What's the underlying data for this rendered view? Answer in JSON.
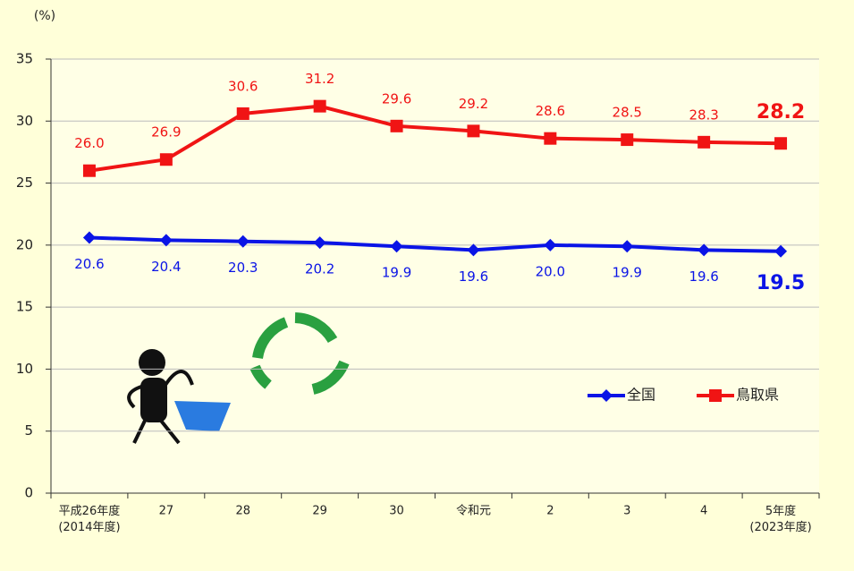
{
  "chart_data": {
    "type": "line",
    "y_unit": "(%)",
    "categories": [
      "平成26年度\n(2014年度)",
      "27",
      "28",
      "29",
      "30",
      "令和元",
      "2",
      "3",
      "4",
      "5年度\n(2023年度)"
    ],
    "series": [
      {
        "name": "全国",
        "color": "#0a14e6",
        "marker": "diamond",
        "values": [
          20.6,
          20.4,
          20.3,
          20.2,
          19.9,
          19.6,
          20.0,
          19.9,
          19.6,
          19.5
        ],
        "value_labels": [
          "20.6",
          "20.4",
          "20.3",
          "20.2",
          "19.9",
          "19.6",
          "20.0",
          "19.9",
          "19.6",
          "19.5"
        ]
      },
      {
        "name": "鳥取県",
        "color": "#f01414",
        "marker": "square",
        "values": [
          26.0,
          26.9,
          30.6,
          31.2,
          29.6,
          29.2,
          28.6,
          28.5,
          28.3,
          28.2
        ],
        "value_labels": [
          "26.0",
          "26.9",
          "30.6",
          "31.2",
          "29.6",
          "29.2",
          "28.6",
          "28.5",
          "28.3",
          "28.2"
        ]
      }
    ],
    "ylim": [
      0,
      35
    ],
    "yticks": [
      0,
      5,
      10,
      15,
      20,
      25,
      30,
      35
    ],
    "grid": true
  }
}
